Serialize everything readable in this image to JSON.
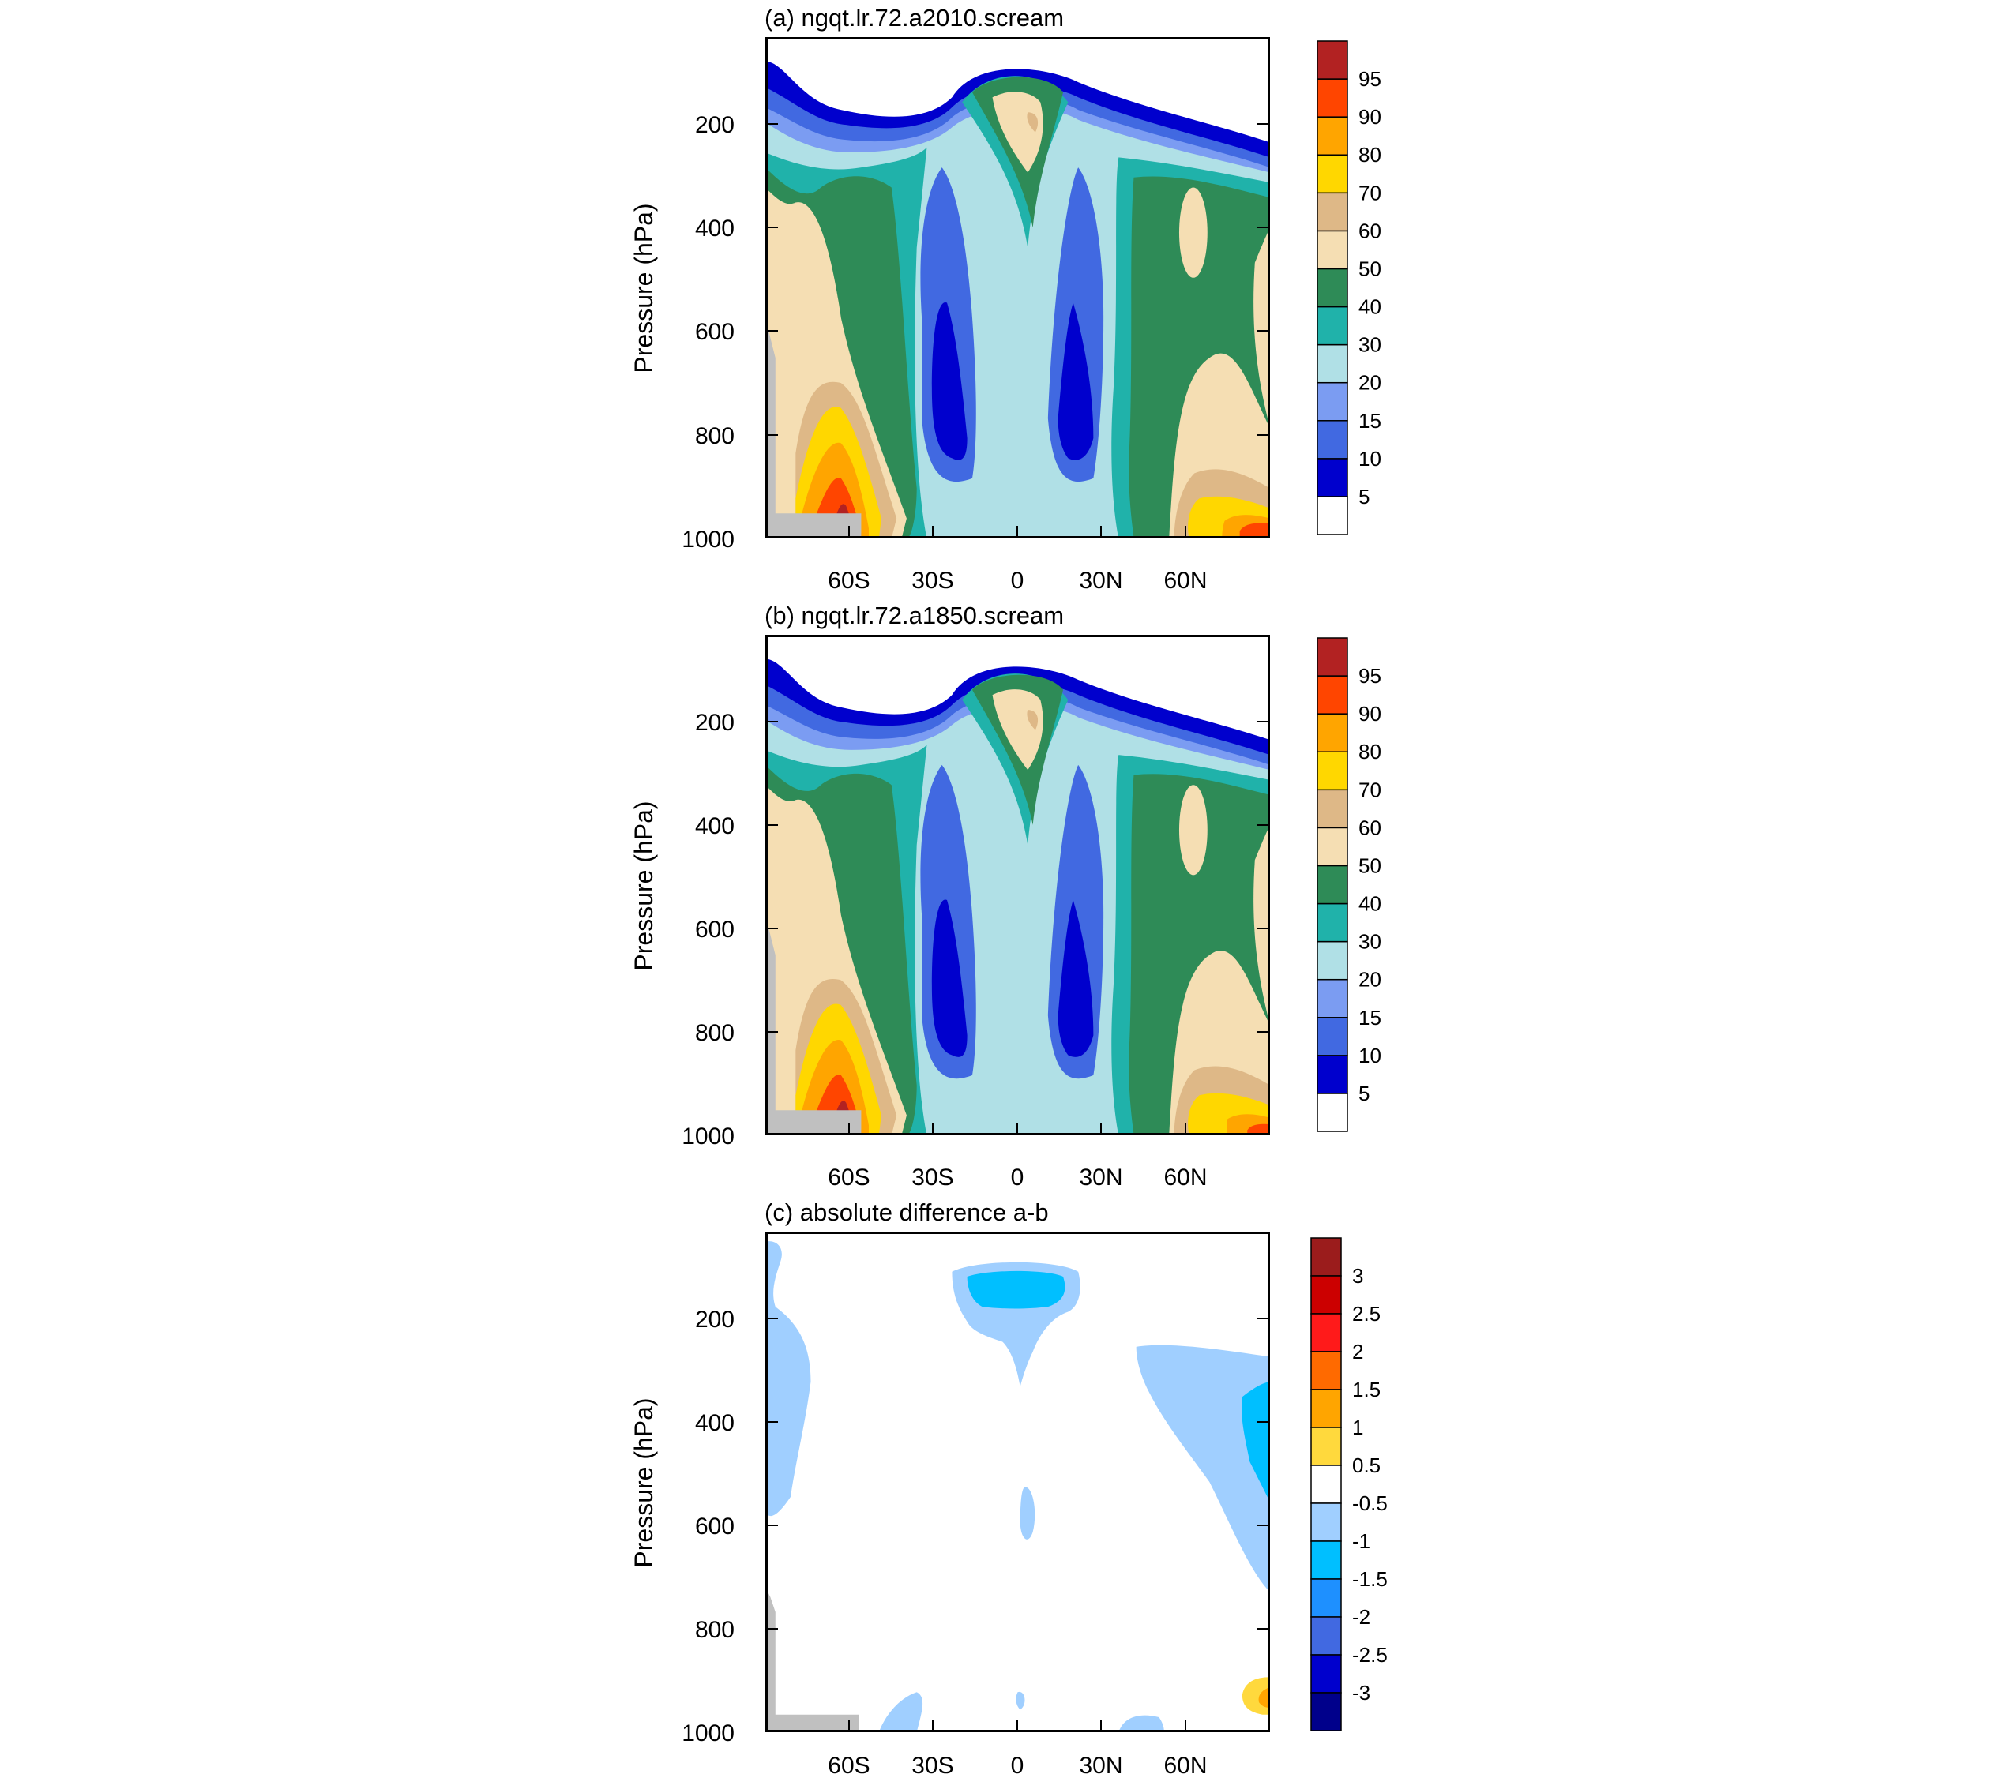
{
  "chart_data": [
    {
      "type": "contour",
      "title": "(a) ngqt.lr.72.a2010.scream",
      "ylabel": "Pressure (hPa)",
      "xlabel": "",
      "ylim": [
        1000,
        30
      ],
      "yticks": [
        200,
        400,
        600,
        800,
        1000
      ],
      "xlim": [
        -90,
        90
      ],
      "xticks": [
        {
          "value": -60,
          "label": "60S"
        },
        {
          "value": -30,
          "label": "30S"
        },
        {
          "value": 0,
          "label": "0"
        },
        {
          "value": 30,
          "label": "30N"
        },
        {
          "value": 60,
          "label": "60N"
        }
      ],
      "colorbar": {
        "labels": [
          "5",
          "10",
          "15",
          "20",
          "30",
          "40",
          "50",
          "60",
          "70",
          "80",
          "90",
          "95"
        ],
        "colors": [
          "#ffffff",
          "#0000cd",
          "#4169e1",
          "#7b9cf2",
          "#b0e0e6",
          "#20b2aa",
          "#2e8b57",
          "#f5deb3",
          "#deb887",
          "#ffd700",
          "#ffa500",
          "#ff4500",
          "#b22222"
        ]
      },
      "features": [
        {
          "region": "upper tropical troposphere (~100-300 hPa, 0-15N)",
          "level": "50-70"
        },
        {
          "region": "tropical/subtropical mid-lower troposphere (600-900 hPa, 20S and 15N cores)",
          "level": "<10"
        },
        {
          "region": "Southern Ocean boundary layer (~60S, 850-980 hPa)",
          "level": ">95"
        },
        {
          "region": "Arctic boundary layer (70-90N, 900-1000 hPa)",
          "level": "70-95"
        }
      ]
    },
    {
      "type": "contour",
      "title": "(b) ngqt.lr.72.a1850.scream",
      "ylabel": "Pressure (hPa)",
      "xlabel": "",
      "ylim": [
        1000,
        30
      ],
      "yticks": [
        200,
        400,
        600,
        800,
        1000
      ],
      "xlim": [
        -90,
        90
      ],
      "xticks": [
        {
          "value": -60,
          "label": "60S"
        },
        {
          "value": -30,
          "label": "30S"
        },
        {
          "value": 0,
          "label": "0"
        },
        {
          "value": 30,
          "label": "30N"
        },
        {
          "value": 60,
          "label": "60N"
        }
      ],
      "colorbar": {
        "labels": [
          "5",
          "10",
          "15",
          "20",
          "30",
          "40",
          "50",
          "60",
          "70",
          "80",
          "90",
          "95"
        ],
        "colors": [
          "#ffffff",
          "#0000cd",
          "#4169e1",
          "#7b9cf2",
          "#b0e0e6",
          "#20b2aa",
          "#2e8b57",
          "#f5deb3",
          "#deb887",
          "#ffd700",
          "#ffa500",
          "#ff4500",
          "#b22222"
        ]
      },
      "features": [
        {
          "region": "upper tropical troposphere (~100-300 hPa, 0-15N)",
          "level": "50-70"
        },
        {
          "region": "tropical/subtropical mid-lower troposphere (600-900 hPa, 20S and 15N cores)",
          "level": "<10"
        },
        {
          "region": "Southern Ocean boundary layer (~60S, 850-980 hPa)",
          "level": ">95"
        },
        {
          "region": "Arctic boundary layer (70-90N, 900-1000 hPa)",
          "level": "70-90"
        }
      ]
    },
    {
      "type": "contour",
      "title": "(c) absolute difference a-b",
      "ylabel": "Pressure (hPa)",
      "xlabel": "",
      "ylim": [
        1000,
        30
      ],
      "yticks": [
        200,
        400,
        600,
        800,
        1000
      ],
      "xlim": [
        -90,
        90
      ],
      "xticks": [
        {
          "value": -60,
          "label": "60S"
        },
        {
          "value": -30,
          "label": "30S"
        },
        {
          "value": 0,
          "label": "0"
        },
        {
          "value": 30,
          "label": "30N"
        },
        {
          "value": 60,
          "label": "60N"
        }
      ],
      "colorbar": {
        "labels": [
          "3",
          "2.5",
          "2",
          "1.5",
          "1",
          "0.5",
          "-0.5",
          "-1",
          "-1.5",
          "-2",
          "-2.5",
          "-3"
        ],
        "colors": [
          "#9b1c1c",
          "#cc0000",
          "#ff1a1a",
          "#ff6a00",
          "#ffa500",
          "#ffd93d",
          "#ffffff",
          "#a0cfff",
          "#00bfff",
          "#1e90ff",
          "#4169e1",
          "#0000cd",
          "#00008b"
        ]
      },
      "features": [
        {
          "region": "tropical upper troposphere (~100-200 hPa, 20S-25N)",
          "level": "-1 to -1.5"
        },
        {
          "region": "Arctic mid troposphere (250-700 hPa, 45-90N)",
          "level": "-0.5 to -1.5"
        },
        {
          "region": "Arctic surface (900-1000 hPa, 75-90N)",
          "level": "0.5 to 2"
        }
      ]
    }
  ]
}
